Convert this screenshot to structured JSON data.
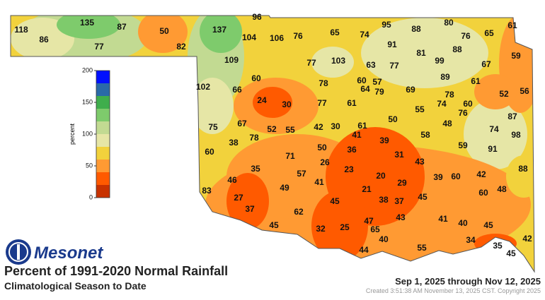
{
  "header": {
    "logo": "Mesonet",
    "title": "Percent of 1991-2020 Normal Rainfall",
    "subtitle": "Climatological Season to Date",
    "period": "Sep 1, 2025 through Nov 12, 2025",
    "created": "Created 3:51:38 AM November 13, 2025 CST. Copyright 2025"
  },
  "colorbar": {
    "label": "percent",
    "bins": [
      0,
      20,
      40,
      60,
      80,
      100,
      120,
      140,
      160,
      180,
      200
    ],
    "colors": [
      "#c83200",
      "#ff5a00",
      "#ff9a33",
      "#f2d23c",
      "#e6e6a6",
      "#c2da92",
      "#7ecb6c",
      "#3fae4c",
      "#2a6aa8",
      "#0010ff"
    ],
    "ticks": [
      0,
      50,
      100,
      150,
      200
    ]
  },
  "stations": [
    118,
    86,
    135,
    77,
    87,
    50,
    82,
    137,
    104,
    96,
    106,
    76,
    65,
    74,
    95,
    88,
    80,
    76,
    65,
    61,
    91,
    81,
    88,
    99,
    59,
    109,
    77,
    103,
    63,
    77,
    67,
    89,
    102,
    66,
    60,
    78,
    60,
    57,
    64,
    79,
    69,
    61,
    52,
    56,
    24,
    30,
    77,
    61,
    55,
    74,
    78,
    60,
    76,
    87,
    75,
    67,
    52,
    55,
    42,
    30,
    61,
    41,
    50,
    48,
    74,
    98,
    58,
    38,
    78,
    39,
    59,
    91,
    60,
    71,
    50,
    36,
    31,
    43,
    26,
    23,
    35,
    57,
    20,
    29,
    39,
    60,
    42,
    88,
    46,
    41,
    21,
    49,
    48,
    83,
    27,
    38,
    37,
    45,
    60,
    37,
    45,
    62,
    43,
    41,
    47,
    45,
    32,
    25,
    65,
    40,
    45,
    42,
    40,
    34,
    35,
    45,
    55,
    44
  ]
}
